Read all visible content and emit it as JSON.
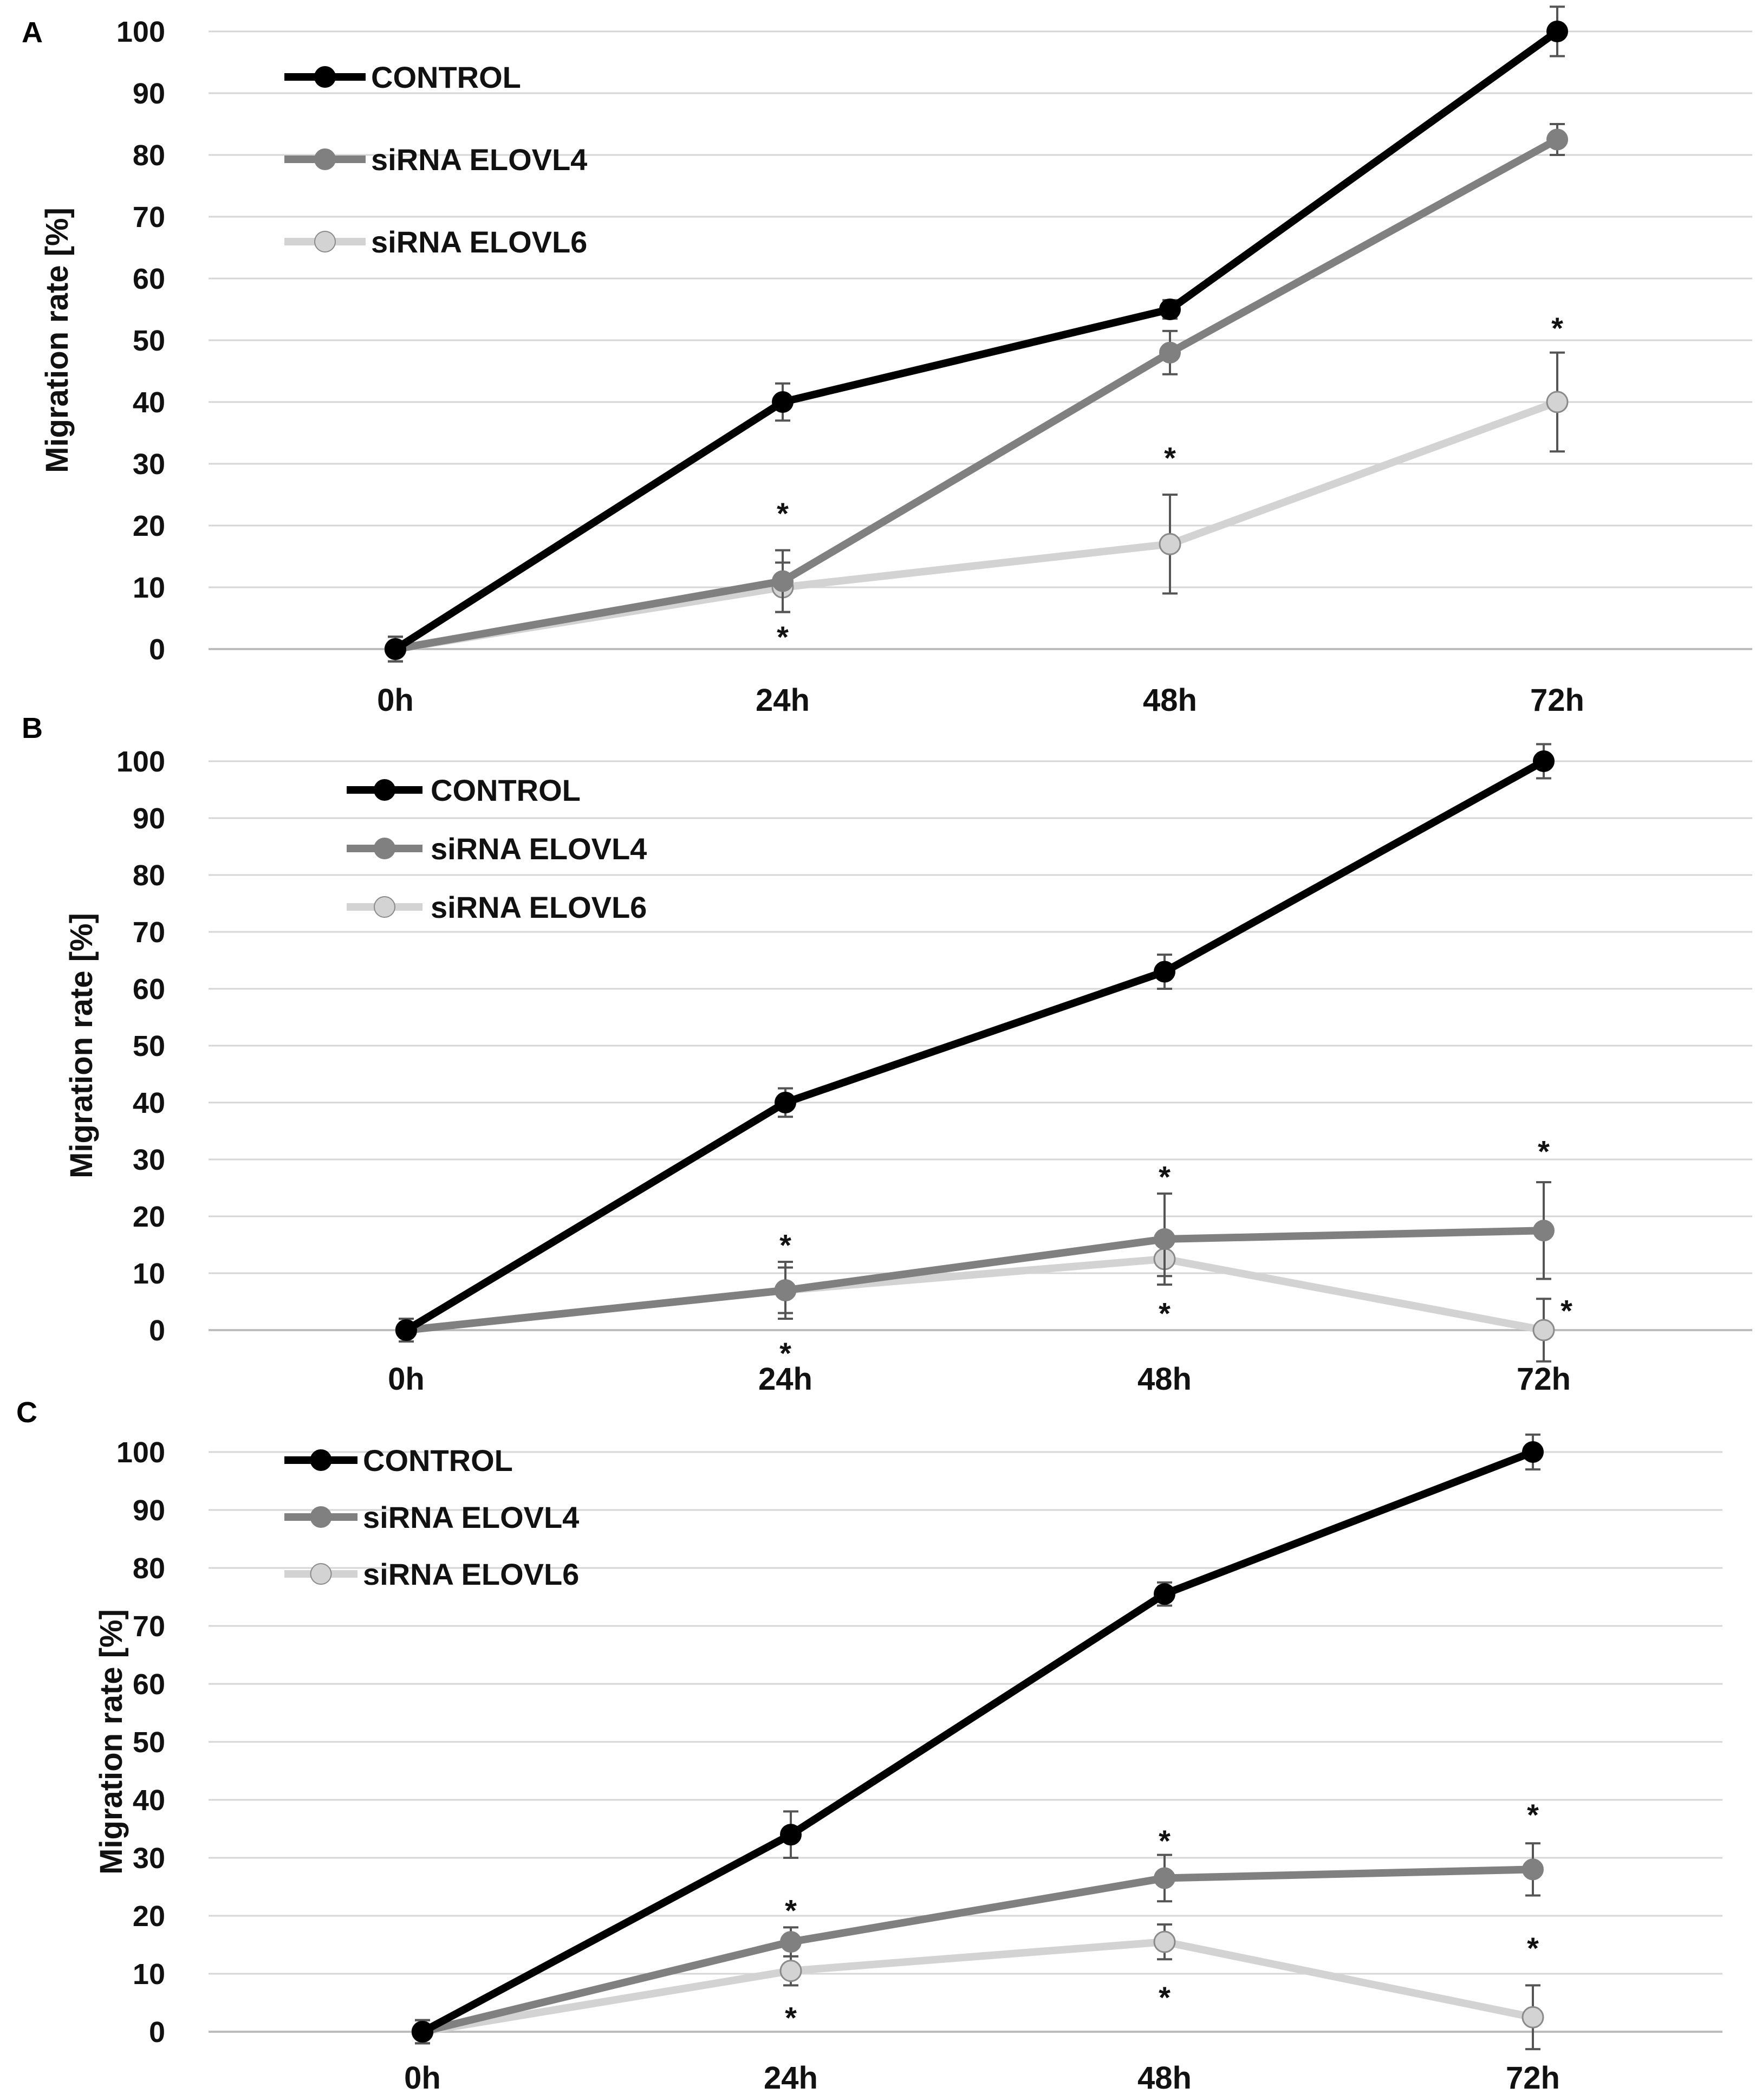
{
  "figure": {
    "colors": {
      "control": "#000000",
      "elovl4": "#808080",
      "elovl6": "#d3d3d3",
      "grid": "#d6d6d6",
      "errorbar": "#555555"
    }
  },
  "chart_data": [
    {
      "panel": "A",
      "type": "line",
      "ylabel": "Migration rate [%]",
      "ylim": [
        0,
        100
      ],
      "yticks": [
        "0",
        "10",
        "20",
        "30",
        "40",
        "50",
        "60",
        "70",
        "80",
        "90",
        "100"
      ],
      "categories": [
        "0h",
        "24h",
        "48h",
        "72h"
      ],
      "legend_position": "top-left",
      "series": [
        {
          "name": "CONTROL",
          "color": "#000000",
          "values": [
            0,
            40,
            55,
            100
          ],
          "errors": [
            2,
            3,
            1.5,
            4
          ],
          "marker_fill": "#000000"
        },
        {
          "name": "siRNA ELOVL4",
          "color": "#808080",
          "values": [
            0,
            11,
            48,
            82.5
          ],
          "errors": [
            2,
            5,
            3.5,
            2.5
          ],
          "marker_fill": "#808080"
        },
        {
          "name": "siRNA ELOVL6",
          "color": "#d3d3d3",
          "values": [
            0,
            10,
            17,
            40
          ],
          "errors": [
            2,
            4,
            8,
            8
          ],
          "marker_fill": "#d3d3d3"
        }
      ],
      "annotations": [
        {
          "text": "*",
          "x": "24h",
          "y": 22
        },
        {
          "text": "*",
          "x": "24h",
          "y": 2
        },
        {
          "text": "*",
          "x": "48h",
          "y": 31
        },
        {
          "text": "*",
          "x": "72h",
          "y": 52
        }
      ]
    },
    {
      "panel": "B",
      "type": "line",
      "ylabel": "Migration rate [%]",
      "ylim": [
        0,
        100
      ],
      "yticks": [
        "0",
        "10",
        "20",
        "30",
        "40",
        "50",
        "60",
        "70",
        "80",
        "90",
        "100"
      ],
      "categories": [
        "0h",
        "24h",
        "48h",
        "72h"
      ],
      "legend_position": "top-left",
      "series": [
        {
          "name": "CONTROL",
          "color": "#000000",
          "values": [
            0,
            40,
            63,
            100
          ],
          "errors": [
            2,
            2.5,
            3,
            3
          ],
          "marker_fill": "#000000"
        },
        {
          "name": "siRNA ELOVL4",
          "color": "#808080",
          "values": [
            0,
            7,
            16,
            17.5
          ],
          "errors": [
            2,
            5,
            8,
            8.5
          ],
          "marker_fill": "#808080"
        },
        {
          "name": "siRNA ELOVL6",
          "color": "#d3d3d3",
          "values": [
            0,
            7,
            12.5,
            0
          ],
          "errors": [
            2,
            4,
            3,
            5.5
          ],
          "marker_fill": "#d3d3d3"
        }
      ],
      "annotations": [
        {
          "text": "*",
          "x": "24h",
          "y": 15
        },
        {
          "text": "*",
          "x": "24h",
          "y": -4
        },
        {
          "text": "*",
          "x": "48h",
          "y": 27
        },
        {
          "text": "*",
          "x": "48h",
          "y": 3
        },
        {
          "text": "*",
          "x": "72h",
          "y": 31.5
        },
        {
          "text": "*",
          "x": "72h",
          "y": 3.5,
          "offset": "right"
        }
      ]
    },
    {
      "panel": "C",
      "type": "line",
      "ylabel": "Migration rate [%]",
      "ylim": [
        0,
        100
      ],
      "yticks": [
        "0",
        "10",
        "20",
        "30",
        "40",
        "50",
        "60",
        "70",
        "80",
        "90",
        "100"
      ],
      "categories": [
        "0h",
        "24h",
        "48h",
        "72h"
      ],
      "legend_position": "top-left",
      "series": [
        {
          "name": "CONTROL",
          "color": "#000000",
          "values": [
            0,
            34,
            75.5,
            100
          ],
          "errors": [
            2,
            4,
            2,
            3
          ],
          "marker_fill": "#000000"
        },
        {
          "name": "siRNA ELOVL4",
          "color": "#808080",
          "values": [
            0,
            15.5,
            26.5,
            28
          ],
          "errors": [
            2,
            2.5,
            4,
            4.5
          ],
          "marker_fill": "#808080"
        },
        {
          "name": "siRNA ELOVL6",
          "color": "#d3d3d3",
          "values": [
            0,
            10.5,
            15.5,
            2.5
          ],
          "errors": [
            2,
            2.5,
            3,
            5.5
          ],
          "marker_fill": "#d3d3d3"
        }
      ],
      "annotations": [
        {
          "text": "*",
          "x": "24h",
          "y": 21
        },
        {
          "text": "*",
          "x": "24h",
          "y": 2.5
        },
        {
          "text": "*",
          "x": "48h",
          "y": 33
        },
        {
          "text": "*",
          "x": "48h",
          "y": 6
        },
        {
          "text": "*",
          "x": "72h",
          "y": 37.5
        },
        {
          "text": "*",
          "x": "72h",
          "y": 14.5
        }
      ]
    }
  ]
}
